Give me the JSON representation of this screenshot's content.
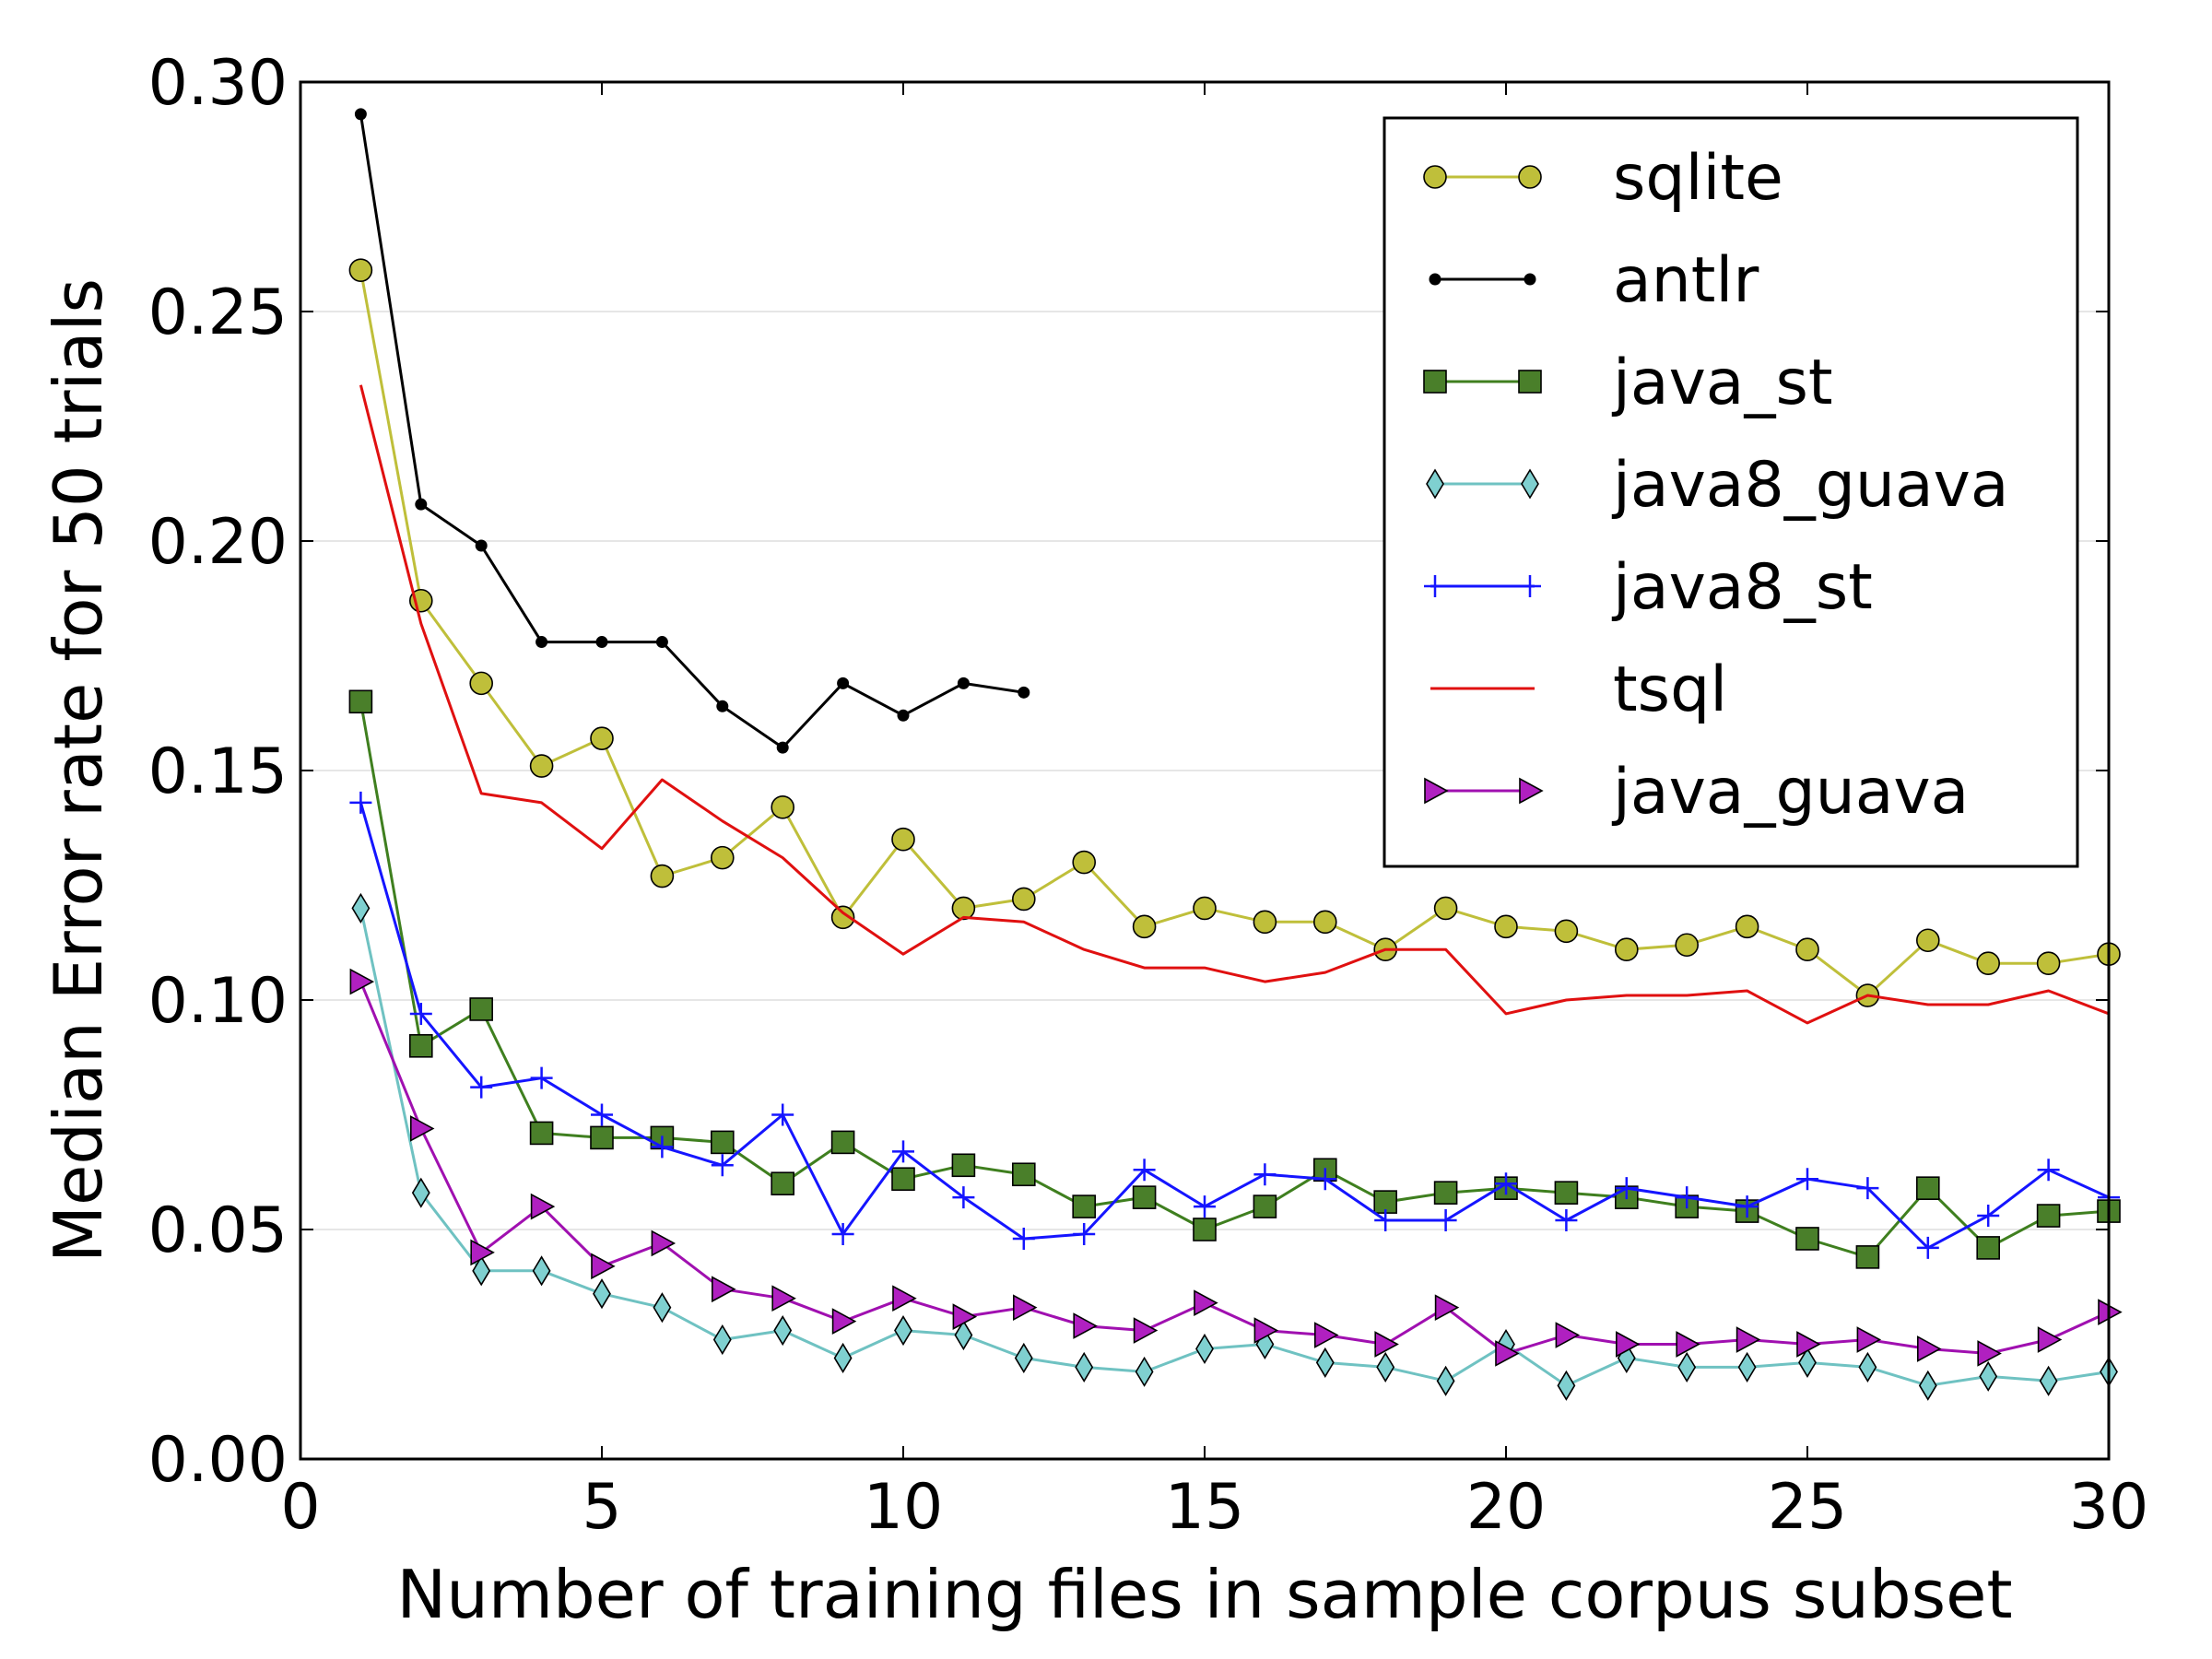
{
  "chart_data": {
    "type": "line",
    "title": "",
    "xlabel": "Number of training files in sample corpus subset",
    "ylabel": "Median Error rate for 50 trials",
    "xlim": [
      0,
      30
    ],
    "ylim": [
      0.0,
      0.3
    ],
    "x_ticks": [
      0,
      5,
      10,
      15,
      20,
      25,
      30
    ],
    "x_tick_labels": [
      "0",
      "5",
      "10",
      "15",
      "20",
      "25",
      "30"
    ],
    "y_ticks": [
      0.0,
      0.05,
      0.1,
      0.15,
      0.2,
      0.25,
      0.3
    ],
    "y_tick_labels": [
      "0.00",
      "0.05",
      "0.10",
      "0.15",
      "0.20",
      "0.25",
      "0.30"
    ],
    "grid": "horizontal light lines",
    "legend_position": "top-right",
    "series": [
      {
        "name": "sqlite",
        "color": "#bfbf3a",
        "marker": "circle",
        "marker_fill": "#bfbf3a",
        "x": [
          1,
          2,
          3,
          4,
          5,
          6,
          7,
          8,
          9,
          10,
          11,
          12,
          13,
          14,
          15,
          16,
          17,
          18,
          19,
          20,
          21,
          22,
          23,
          24,
          25,
          26,
          27,
          28,
          29,
          30
        ],
        "y": [
          0.259,
          0.187,
          0.169,
          0.151,
          0.157,
          0.127,
          0.131,
          0.142,
          0.118,
          0.135,
          0.12,
          0.122,
          0.13,
          0.116,
          0.12,
          0.117,
          0.117,
          0.111,
          0.12,
          0.116,
          0.115,
          0.111,
          0.112,
          0.116,
          0.111,
          0.101,
          0.113,
          0.108,
          0.108,
          0.11
        ]
      },
      {
        "name": "antlr",
        "color": "#000000",
        "marker": "dot",
        "marker_fill": "#000000",
        "x": [
          1,
          2,
          3,
          4,
          5,
          6,
          7,
          8,
          9,
          10,
          11,
          12
        ],
        "y": [
          0.293,
          0.208,
          0.199,
          0.178,
          0.178,
          0.178,
          0.164,
          0.155,
          0.169,
          0.162,
          0.169,
          0.167
        ]
      },
      {
        "name": "java_st",
        "color": "#3f7f1f",
        "marker": "square",
        "marker_fill": "#4a7f2a",
        "x": [
          1,
          2,
          3,
          4,
          5,
          6,
          7,
          8,
          9,
          10,
          11,
          12,
          13,
          14,
          15,
          16,
          17,
          18,
          19,
          20,
          21,
          22,
          23,
          24,
          25,
          26,
          27,
          28,
          29,
          30
        ],
        "y": [
          0.165,
          0.09,
          0.098,
          0.071,
          0.07,
          0.07,
          0.069,
          0.06,
          0.069,
          0.061,
          0.064,
          0.062,
          0.055,
          0.057,
          0.05,
          0.055,
          0.063,
          0.056,
          0.058,
          0.059,
          0.058,
          0.057,
          0.055,
          0.054,
          0.048,
          0.044,
          0.059,
          0.046,
          0.053,
          0.054
        ]
      },
      {
        "name": "java8_guava",
        "color": "#6fc2c2",
        "marker": "diamond",
        "marker_fill": "#7fd0d0",
        "x": [
          1,
          2,
          3,
          4,
          5,
          6,
          7,
          8,
          9,
          10,
          11,
          12,
          13,
          14,
          15,
          16,
          17,
          18,
          19,
          20,
          21,
          22,
          23,
          24,
          25,
          26,
          27,
          28,
          29,
          30
        ],
        "y": [
          0.12,
          0.058,
          0.041,
          0.041,
          0.036,
          0.033,
          0.026,
          0.028,
          0.022,
          0.028,
          0.027,
          0.022,
          0.02,
          0.019,
          0.024,
          0.025,
          0.021,
          0.02,
          0.017,
          0.025,
          0.016,
          0.022,
          0.02,
          0.02,
          0.021,
          0.02,
          0.016,
          0.018,
          0.017,
          0.019
        ]
      },
      {
        "name": "java8_st",
        "color": "#1515ff",
        "marker": "plus",
        "marker_fill": "#1515ff",
        "x": [
          1,
          2,
          3,
          4,
          5,
          6,
          7,
          8,
          9,
          10,
          11,
          12,
          13,
          14,
          15,
          16,
          17,
          18,
          19,
          20,
          21,
          22,
          23,
          24,
          25,
          26,
          27,
          28,
          29,
          30
        ],
        "y": [
          0.143,
          0.097,
          0.081,
          0.083,
          0.075,
          0.068,
          0.064,
          0.075,
          0.049,
          0.067,
          0.057,
          0.048,
          0.049,
          0.063,
          0.055,
          0.062,
          0.061,
          0.052,
          0.052,
          0.06,
          0.052,
          0.059,
          0.057,
          0.055,
          0.061,
          0.059,
          0.046,
          0.053,
          0.063,
          0.057
        ]
      },
      {
        "name": "tsql",
        "color": "#e01010",
        "marker": "none",
        "marker_fill": "#e01010",
        "x": [
          1,
          2,
          3,
          4,
          5,
          6,
          7,
          8,
          9,
          10,
          11,
          12,
          13,
          14,
          15,
          16,
          17,
          18,
          19,
          20,
          21,
          22,
          23,
          24,
          25,
          26,
          27,
          28,
          29,
          30
        ],
        "y": [
          0.234,
          0.182,
          0.145,
          0.143,
          0.133,
          0.148,
          0.139,
          0.131,
          0.119,
          0.11,
          0.118,
          0.117,
          0.111,
          0.107,
          0.107,
          0.104,
          0.106,
          0.111,
          0.111,
          0.097,
          0.1,
          0.101,
          0.101,
          0.102,
          0.095,
          0.101,
          0.099,
          0.099,
          0.102,
          0.097
        ]
      },
      {
        "name": "java_guava",
        "color": "#a010b0",
        "marker": "triangle-right",
        "marker_fill": "#b020c0",
        "x": [
          1,
          2,
          3,
          4,
          5,
          6,
          7,
          8,
          9,
          10,
          11,
          12,
          13,
          14,
          15,
          16,
          17,
          18,
          19,
          20,
          21,
          22,
          23,
          24,
          25,
          26,
          27,
          28,
          29,
          30
        ],
        "y": [
          0.104,
          0.072,
          0.045,
          0.055,
          0.042,
          0.047,
          0.037,
          0.035,
          0.03,
          0.035,
          0.031,
          0.033,
          0.029,
          0.028,
          0.034,
          0.028,
          0.027,
          0.025,
          0.033,
          0.023,
          0.027,
          0.025,
          0.025,
          0.026,
          0.025,
          0.026,
          0.024,
          0.023,
          0.026,
          0.032
        ]
      }
    ]
  }
}
